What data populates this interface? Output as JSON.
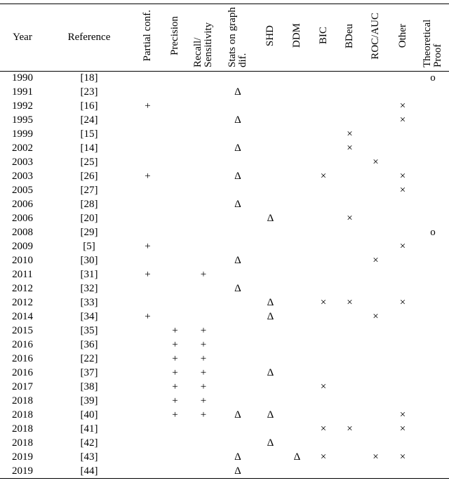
{
  "table": {
    "header": [
      "Year",
      "Reference",
      "Partial conf.",
      "Precision",
      "Recall/ Sensitivity",
      "Stats on graph dif.",
      "SHD",
      "DDM",
      "BIC",
      "BDeu",
      "ROC/AUC",
      "Other",
      "Theoretical Proof"
    ],
    "rows": [
      [
        "1990",
        "[18]",
        null,
        null,
        null,
        null,
        null,
        null,
        null,
        null,
        null,
        null,
        "o"
      ],
      [
        "1991",
        "[23]",
        null,
        null,
        null,
        "Δ",
        null,
        null,
        null,
        null,
        null,
        null,
        null
      ],
      [
        "1992",
        "[16]",
        "+",
        null,
        null,
        null,
        null,
        null,
        null,
        null,
        null,
        "×",
        null
      ],
      [
        "1995",
        "[24]",
        null,
        null,
        null,
        "Δ",
        null,
        null,
        null,
        null,
        null,
        "×",
        null
      ],
      [
        "1999",
        "[15]",
        null,
        null,
        null,
        null,
        null,
        null,
        null,
        "×",
        null,
        null,
        null
      ],
      [
        "2002",
        "[14]",
        null,
        null,
        null,
        "Δ",
        null,
        null,
        null,
        "×",
        null,
        null,
        null
      ],
      [
        "2003",
        "[25]",
        null,
        null,
        null,
        null,
        null,
        null,
        null,
        null,
        "×",
        null,
        null
      ],
      [
        "2003",
        "[26]",
        "+",
        null,
        null,
        "Δ",
        null,
        null,
        "×",
        null,
        null,
        "×",
        null
      ],
      [
        "2005",
        "[27]",
        null,
        null,
        null,
        null,
        null,
        null,
        null,
        null,
        null,
        "×",
        null
      ],
      [
        "2006",
        "[28]",
        null,
        null,
        null,
        "Δ",
        null,
        null,
        null,
        null,
        null,
        null,
        null
      ],
      [
        "2006",
        "[20]",
        null,
        null,
        null,
        null,
        "Δ",
        null,
        null,
        "×",
        null,
        null,
        null
      ],
      [
        "2008",
        "[29]",
        null,
        null,
        null,
        null,
        null,
        null,
        null,
        null,
        null,
        null,
        "o"
      ],
      [
        "2009",
        "[5]",
        "+",
        null,
        null,
        null,
        null,
        null,
        null,
        null,
        null,
        "×",
        null
      ],
      [
        "2010",
        "[30]",
        null,
        null,
        null,
        "Δ",
        null,
        null,
        null,
        null,
        "×",
        null,
        null
      ],
      [
        "2011",
        "[31]",
        "+",
        null,
        "+",
        null,
        null,
        null,
        null,
        null,
        null,
        null,
        null
      ],
      [
        "2012",
        "[32]",
        null,
        null,
        null,
        "Δ",
        null,
        null,
        null,
        null,
        null,
        null,
        null
      ],
      [
        "2012",
        "[33]",
        null,
        null,
        null,
        null,
        "Δ",
        null,
        "×",
        "×",
        null,
        "×",
        null
      ],
      [
        "2014",
        "[34]",
        "+",
        null,
        null,
        null,
        "Δ",
        null,
        null,
        null,
        "×",
        null,
        null
      ],
      [
        "2015",
        "[35]",
        null,
        "+",
        "+",
        null,
        null,
        null,
        null,
        null,
        null,
        null,
        null
      ],
      [
        "2016",
        "[36]",
        null,
        "+",
        "+",
        null,
        null,
        null,
        null,
        null,
        null,
        null,
        null
      ],
      [
        "2016",
        "[22]",
        null,
        "+",
        "+",
        null,
        null,
        null,
        null,
        null,
        null,
        null,
        null
      ],
      [
        "2016",
        "[37]",
        null,
        "+",
        "+",
        null,
        "Δ",
        null,
        null,
        null,
        null,
        null,
        null
      ],
      [
        "2017",
        "[38]",
        null,
        "+",
        "+",
        null,
        null,
        null,
        "×",
        null,
        null,
        null,
        null
      ],
      [
        "2018",
        "[39]",
        null,
        "+",
        "+",
        null,
        null,
        null,
        null,
        null,
        null,
        null,
        null
      ],
      [
        "2018",
        "[40]",
        null,
        "+",
        "+",
        "Δ",
        "Δ",
        null,
        null,
        null,
        null,
        "×",
        null
      ],
      [
        "2018",
        "[41]",
        null,
        null,
        null,
        null,
        null,
        null,
        "×",
        "×",
        null,
        "×",
        null
      ],
      [
        "2018",
        "[42]",
        null,
        null,
        null,
        null,
        "Δ",
        null,
        null,
        null,
        null,
        null,
        null
      ],
      [
        "2019",
        "[43]",
        null,
        null,
        null,
        "Δ",
        null,
        "Δ",
        "×",
        null,
        "×",
        "×",
        null
      ],
      [
        "2019",
        "[44]",
        null,
        null,
        null,
        "Δ",
        null,
        null,
        null,
        null,
        null,
        null,
        null
      ]
    ]
  }
}
